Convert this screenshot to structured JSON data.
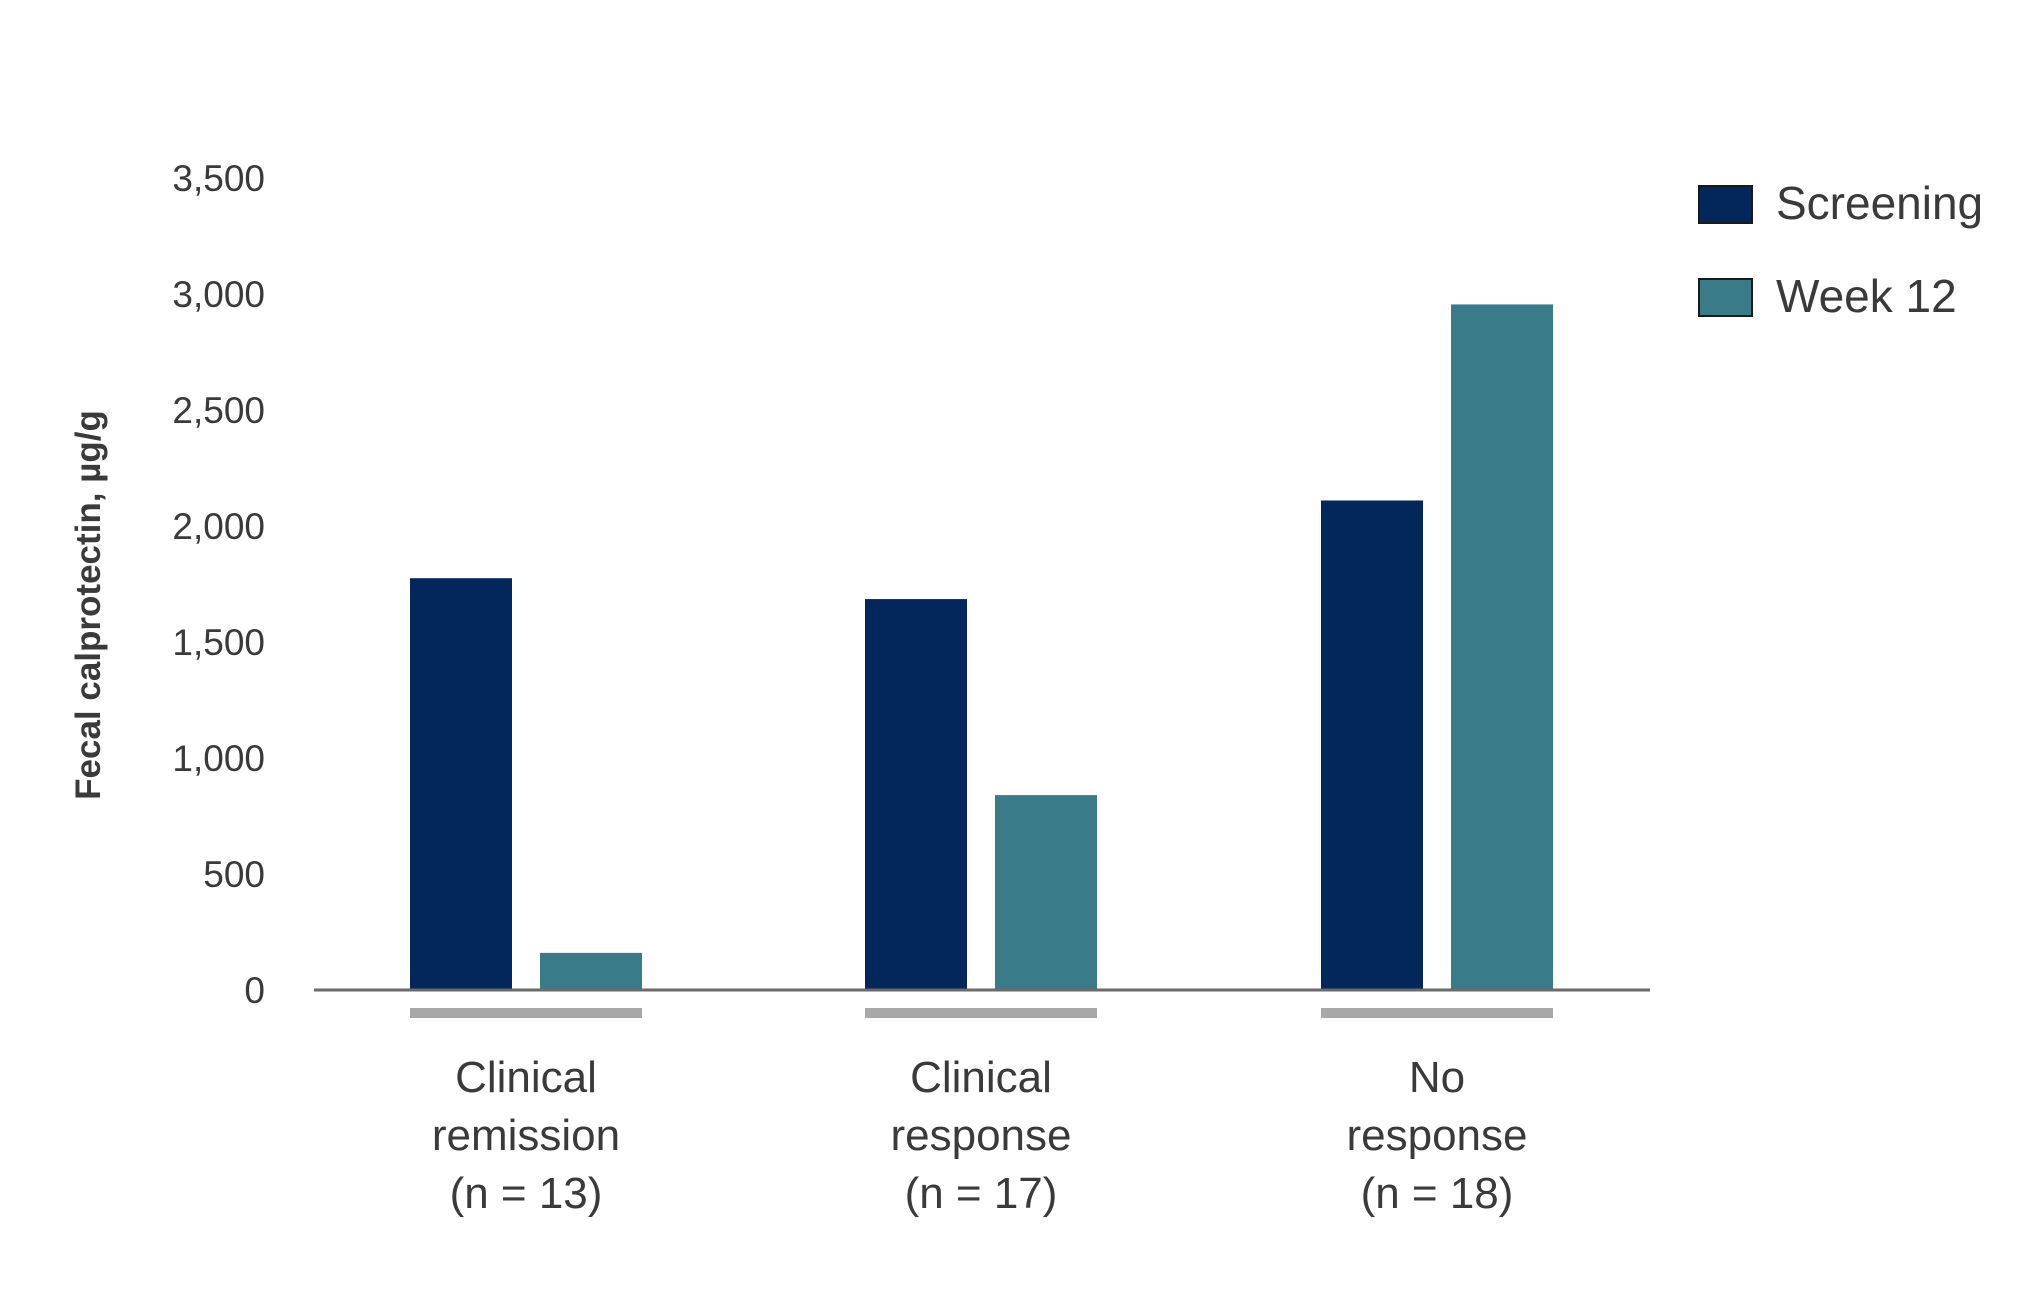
{
  "chart_data": {
    "type": "bar",
    "title": "",
    "xlabel": "",
    "ylabel": "Fecal calprotectin, µg/g",
    "ylim": [
      0,
      3500
    ],
    "yticks": [
      0,
      500,
      1000,
      1500,
      2000,
      2500,
      3000,
      3500
    ],
    "ytick_labels": [
      "0",
      "500",
      "1,000",
      "1,500",
      "2,000",
      "2,500",
      "3,000",
      "3,500"
    ],
    "grid": false,
    "legend_position": "top-right",
    "categories": [
      [
        "Clinical",
        "remission",
        "(n = 13)"
      ],
      [
        "Clinical",
        "response",
        "(n = 17)"
      ],
      [
        "No",
        "response",
        "(n = 18)"
      ]
    ],
    "series": [
      {
        "name": "Screening",
        "color": "#03275a",
        "values": [
          1775,
          1685,
          2110
        ]
      },
      {
        "name": "Week 12",
        "color": "#3a7b8a",
        "values": [
          160,
          840,
          2955
        ]
      }
    ],
    "colors": {
      "axis": "#6b6b6b",
      "group_underline": "#a8a8a8",
      "text": "#3a3a3a"
    }
  }
}
